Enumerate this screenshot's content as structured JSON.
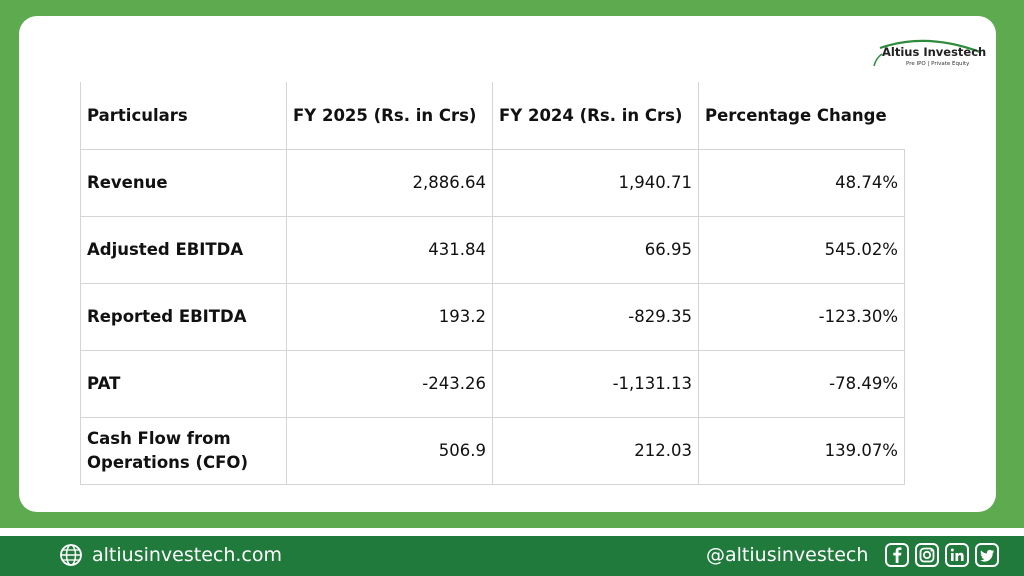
{
  "brand": {
    "name": "Altius Investech",
    "tagline": "Pre IPO | Private Equity"
  },
  "table": {
    "headers": [
      "Particulars",
      "FY 2025 (Rs. in Crs)",
      "FY 2024 (Rs. in Crs)",
      "Percentage Change"
    ],
    "rows": [
      [
        "Revenue",
        "2,886.64",
        "1,940.71",
        "48.74%"
      ],
      [
        "Adjusted EBITDA",
        "431.84",
        "66.95",
        "545.02%"
      ],
      [
        "Reported EBITDA",
        "193.2",
        "-829.35",
        "-123.30%"
      ],
      [
        "PAT",
        "-243.26",
        "-1,131.13",
        "-78.49%"
      ],
      [
        "Cash Flow from Operations (CFO)",
        "506.9",
        "212.03",
        "139.07%"
      ]
    ]
  },
  "footer": {
    "website": "altiusinvestech.com",
    "handle": "@altiusinvestech",
    "social_icons": [
      "facebook-icon",
      "instagram-icon",
      "linkedin-icon",
      "twitter-icon"
    ]
  },
  "colors": {
    "frame_green": "#5dab4e",
    "footer_green": "#1f7a3b"
  }
}
